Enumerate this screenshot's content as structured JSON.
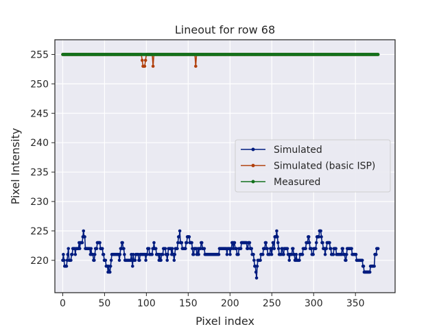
{
  "chart_data": {
    "type": "line",
    "title": "Lineout for row 68",
    "xlabel": "Pixel index",
    "ylabel": "Pixel Intensity",
    "xlim": [
      -9.4,
      397.4
    ],
    "ylim": [
      214.5,
      257.5
    ],
    "xticks": [
      0,
      50,
      100,
      150,
      200,
      250,
      300,
      350
    ],
    "yticks": [
      220,
      225,
      230,
      235,
      240,
      245,
      250,
      255
    ],
    "grid": true,
    "legend_position": "center-right",
    "background": "#eaeaf2",
    "series": [
      {
        "name": "Simulated",
        "color": "#001c7f",
        "x_start": 0,
        "values": [
          220,
          221,
          220,
          219,
          219,
          219,
          219,
          220,
          221,
          222,
          220,
          220,
          220,
          220,
          221,
          221,
          222,
          222,
          222,
          222,
          221,
          222,
          222,
          222,
          222,
          222,
          223,
          222,
          223,
          223,
          223,
          223,
          224,
          225,
          224,
          224,
          222,
          222,
          222,
          222,
          222,
          222,
          222,
          222,
          221,
          222,
          221,
          221,
          221,
          220,
          220,
          221,
          222,
          222,
          222,
          223,
          223,
          223,
          223,
          223,
          222,
          222,
          222,
          222,
          221,
          221,
          220,
          220,
          220,
          219,
          219,
          219,
          218,
          219,
          218,
          218,
          219,
          220,
          221,
          221,
          221,
          221,
          221,
          221,
          221,
          221,
          221,
          221,
          221,
          221,
          220,
          221,
          222,
          222,
          223,
          223,
          222,
          222,
          221,
          220,
          220,
          220,
          220,
          220,
          220,
          220,
          220,
          220,
          220,
          221,
          220,
          219,
          221,
          220,
          220,
          220,
          221,
          221,
          221,
          221,
          221,
          220,
          220,
          221,
          221,
          221,
          221,
          221,
          221,
          221,
          221,
          221,
          220,
          221,
          221,
          222,
          222,
          222,
          221,
          221,
          221,
          221,
          221,
          222,
          222,
          223,
          222,
          222,
          222,
          221,
          221,
          221,
          221,
          220,
          221,
          220,
          220,
          221,
          221,
          221,
          222,
          222,
          222,
          222,
          221,
          221,
          220,
          221,
          222,
          222,
          222,
          222,
          222,
          221,
          222,
          221,
          221,
          220,
          221,
          222,
          222,
          222,
          222,
          223,
          224,
          224,
          225,
          223,
          223,
          223,
          222,
          222,
          222,
          222,
          222,
          222,
          223,
          223,
          224,
          224,
          224,
          224,
          223,
          223,
          223,
          223,
          222,
          221,
          221,
          222,
          222,
          222,
          222,
          221,
          221,
          222,
          221,
          222,
          222,
          222,
          223,
          223,
          222,
          222,
          222,
          222,
          221,
          221,
          221,
          221,
          221,
          221,
          221,
          221,
          221,
          221,
          221,
          221,
          221,
          221,
          221,
          221,
          221,
          221,
          221,
          221,
          221,
          221,
          221,
          222,
          222,
          222,
          222,
          222,
          222,
          222,
          222,
          222,
          222,
          222,
          222,
          221,
          222,
          222,
          222,
          222,
          221,
          222,
          222,
          223,
          223,
          222,
          223,
          223,
          222,
          222,
          222,
          221,
          221,
          221,
          222,
          222,
          222,
          222,
          223,
          223,
          223,
          223,
          223,
          223,
          223,
          223,
          223,
          222,
          222,
          223,
          223,
          223,
          222,
          222,
          222,
          221,
          221,
          221,
          220,
          219,
          219,
          218,
          217,
          219,
          220,
          220,
          220,
          220,
          220,
          221,
          221,
          221,
          221,
          222,
          222,
          222,
          223,
          223,
          222,
          222,
          221,
          221,
          221,
          221,
          222,
          222,
          221,
          222,
          223,
          223,
          222,
          224,
          224,
          224,
          225,
          224,
          223,
          222,
          221,
          221,
          221,
          221,
          222,
          222,
          221,
          221,
          222,
          222,
          222,
          222,
          222,
          222,
          221,
          221,
          220,
          221,
          221,
          221,
          221,
          222,
          222,
          221,
          221,
          220,
          220,
          221,
          220,
          220,
          220,
          220,
          220,
          221,
          221,
          221,
          221,
          221,
          222,
          222,
          222,
          222,
          222,
          223,
          223,
          223,
          224,
          224,
          223,
          222,
          222,
          222,
          221,
          221,
          221,
          222,
          222,
          222,
          222,
          223,
          224,
          224,
          224,
          224,
          225,
          225,
          225,
          224,
          223,
          223,
          222,
          222,
          222,
          221,
          222,
          222,
          223,
          223,
          223,
          223,
          223,
          222,
          222,
          221,
          221,
          221,
          221,
          222,
          222,
          222,
          222,
          221,
          221,
          221,
          221,
          221,
          221,
          221,
          221,
          221,
          222,
          222,
          221,
          221,
          221,
          220,
          220,
          221,
          222,
          222,
          222,
          222,
          222,
          222,
          222,
          222,
          221,
          221,
          221,
          221,
          221,
          221,
          221,
          220,
          220,
          220,
          220,
          220,
          220,
          220,
          220,
          220,
          220,
          219,
          219,
          218,
          218,
          218,
          218,
          218,
          218,
          218,
          218,
          218,
          218,
          219,
          219,
          219,
          219,
          219,
          219,
          219,
          221,
          221,
          221,
          222,
          222,
          222
        ]
      },
      {
        "name": "Simulated (basic ISP)",
        "color": "#b1400d",
        "x_start": 0,
        "baseline": 255,
        "dips": [
          [
            95,
            254
          ],
          [
            96,
            253
          ],
          [
            97,
            253
          ],
          [
            98,
            253
          ],
          [
            99,
            254
          ],
          [
            108,
            253
          ],
          [
            159,
            253
          ]
        ]
      },
      {
        "name": "Measured",
        "color": "#12711c",
        "x_start": 0,
        "x_end": 377,
        "constant": 255
      }
    ]
  }
}
